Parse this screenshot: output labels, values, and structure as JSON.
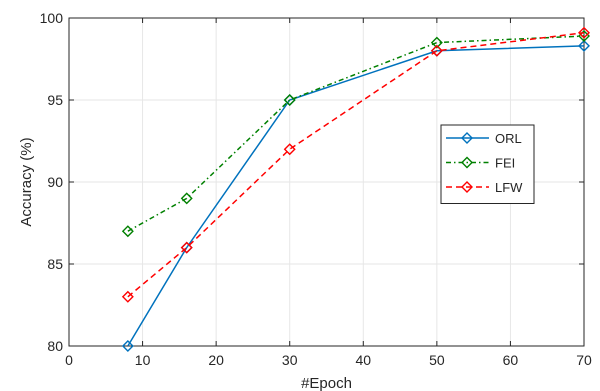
{
  "chart_data": {
    "type": "line",
    "xlabel": "#Epoch",
    "ylabel": "Accuracy (%)",
    "xlim": [
      0,
      70
    ],
    "ylim": [
      80,
      100
    ],
    "xticks": [
      0,
      10,
      20,
      30,
      40,
      50,
      60,
      70
    ],
    "yticks": [
      80,
      85,
      90,
      95,
      100
    ],
    "grid": true,
    "legend_position": "right",
    "x": [
      8,
      16,
      30,
      50,
      70
    ],
    "series": [
      {
        "name": "ORL",
        "values": [
          80,
          86,
          95,
          98,
          98.3
        ],
        "color": "#0072bd",
        "dash": "solid"
      },
      {
        "name": "FEI",
        "values": [
          87,
          89,
          95,
          98.5,
          98.9
        ],
        "color": "#008000",
        "dash": "dashdot"
      },
      {
        "name": "LFW",
        "values": [
          83,
          86,
          92,
          98,
          99.1
        ],
        "color": "#ff0000",
        "dash": "dashed"
      }
    ]
  }
}
